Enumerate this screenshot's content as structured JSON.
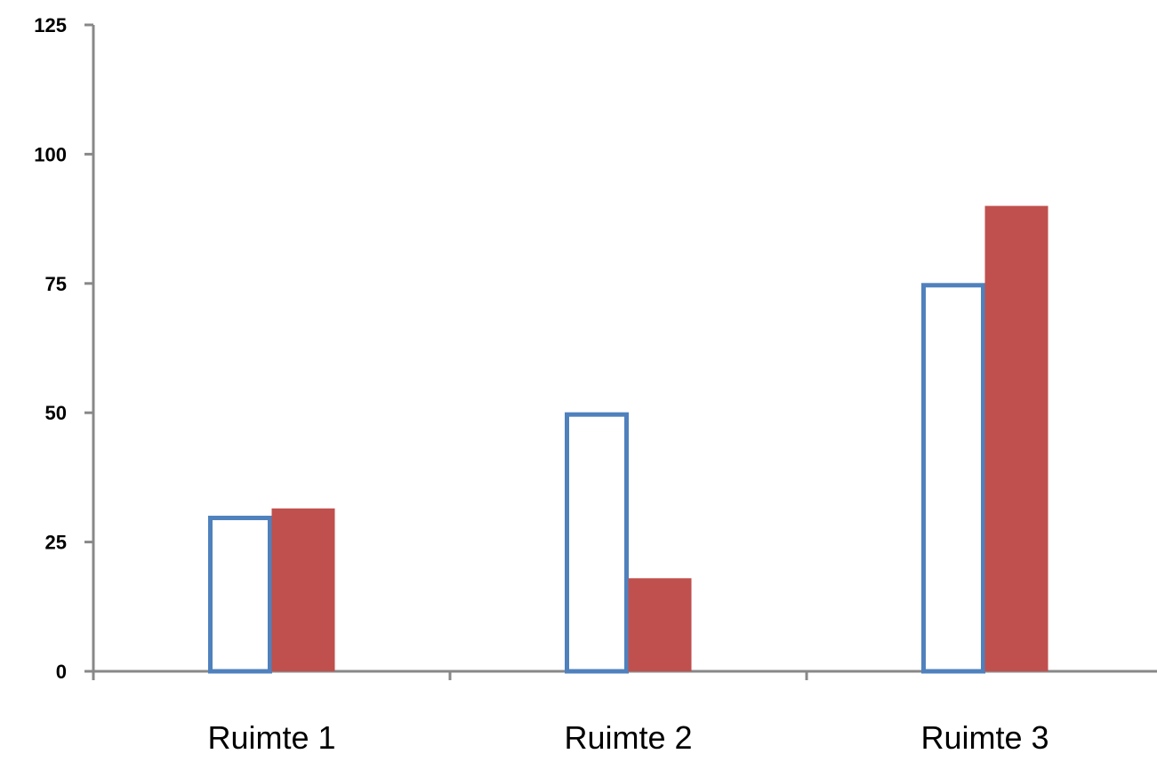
{
  "chart_data": {
    "type": "bar",
    "categories": [
      "Ruimte 1",
      "Ruimte 2",
      "Ruimte 3"
    ],
    "series": [
      {
        "values": [
          30,
          50,
          75
        ],
        "style": "outline",
        "color": "#4F81BD"
      },
      {
        "values": [
          31.5,
          18,
          90
        ],
        "style": "filled",
        "color": "#C0504D"
      }
    ],
    "ylim": [
      0,
      125
    ],
    "yticks": [
      0,
      25,
      50,
      75,
      100,
      125
    ],
    "grid": false,
    "legend": "none",
    "title": "",
    "xlabel": "",
    "ylabel": ""
  }
}
